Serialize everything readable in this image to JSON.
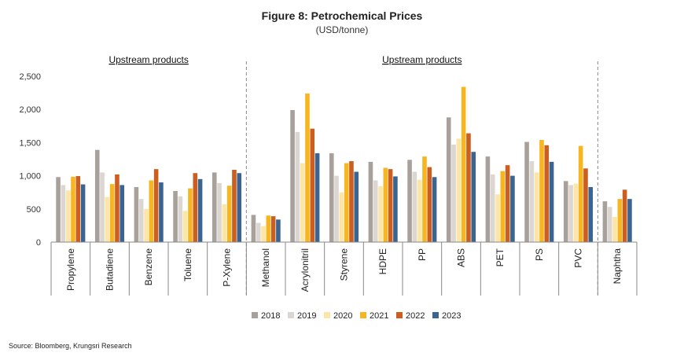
{
  "header": {
    "title": "Figure 8: Petrochemical Prices",
    "subtitle": "(USD/tonne)"
  },
  "footer": {
    "source": "Source: Bloomberg, Krungsri Research"
  },
  "chart_data": {
    "type": "bar",
    "categories": [
      "Propylene",
      "Butadiene",
      "Benzene",
      "Toluene",
      "P-Xylene",
      "Methanol",
      "Acrylonitril",
      "Styrene",
      "HDPE",
      "PP",
      "ABS",
      "PET",
      "PS",
      "PVC",
      "Naphtha"
    ],
    "series": [
      {
        "name": "2018",
        "color": "#a8a09b",
        "values": [
          980,
          1390,
          830,
          770,
          1050,
          410,
          1990,
          1340,
          1210,
          1240,
          1880,
          1290,
          1510,
          920,
          615
        ]
      },
      {
        "name": "2019",
        "color": "#dcd6d2",
        "values": [
          860,
          1050,
          650,
          690,
          890,
          290,
          1660,
          1000,
          930,
          1060,
          1470,
          1020,
          1220,
          860,
          530
        ]
      },
      {
        "name": "2020",
        "color": "#fbe6a8",
        "values": [
          780,
          680,
          500,
          470,
          570,
          240,
          1190,
          750,
          840,
          940,
          1560,
          720,
          1050,
          880,
          380
        ]
      },
      {
        "name": "2021",
        "color": "#f7b520",
        "values": [
          985,
          875,
          930,
          810,
          850,
          400,
          2240,
          1190,
          1120,
          1290,
          2340,
          1070,
          1540,
          1450,
          650
        ]
      },
      {
        "name": "2022",
        "color": "#cc5f20",
        "values": [
          995,
          1020,
          1100,
          1040,
          1090,
          390,
          1710,
          1220,
          1100,
          1130,
          1640,
          1160,
          1460,
          1110,
          790
        ]
      },
      {
        "name": "2023",
        "color": "#3b6590",
        "values": [
          870,
          860,
          900,
          950,
          1040,
          340,
          1340,
          1060,
          990,
          980,
          1360,
          1000,
          1210,
          830,
          650
        ]
      }
    ],
    "ylim": [
      0,
      2500
    ],
    "yticks": [
      "0",
      "500",
      "1,000",
      "1,500",
      "2,000",
      "2,500"
    ],
    "group_labels": [
      "Upstream products",
      "Upstream products"
    ],
    "legend_position": "bottom",
    "grid": false
  }
}
